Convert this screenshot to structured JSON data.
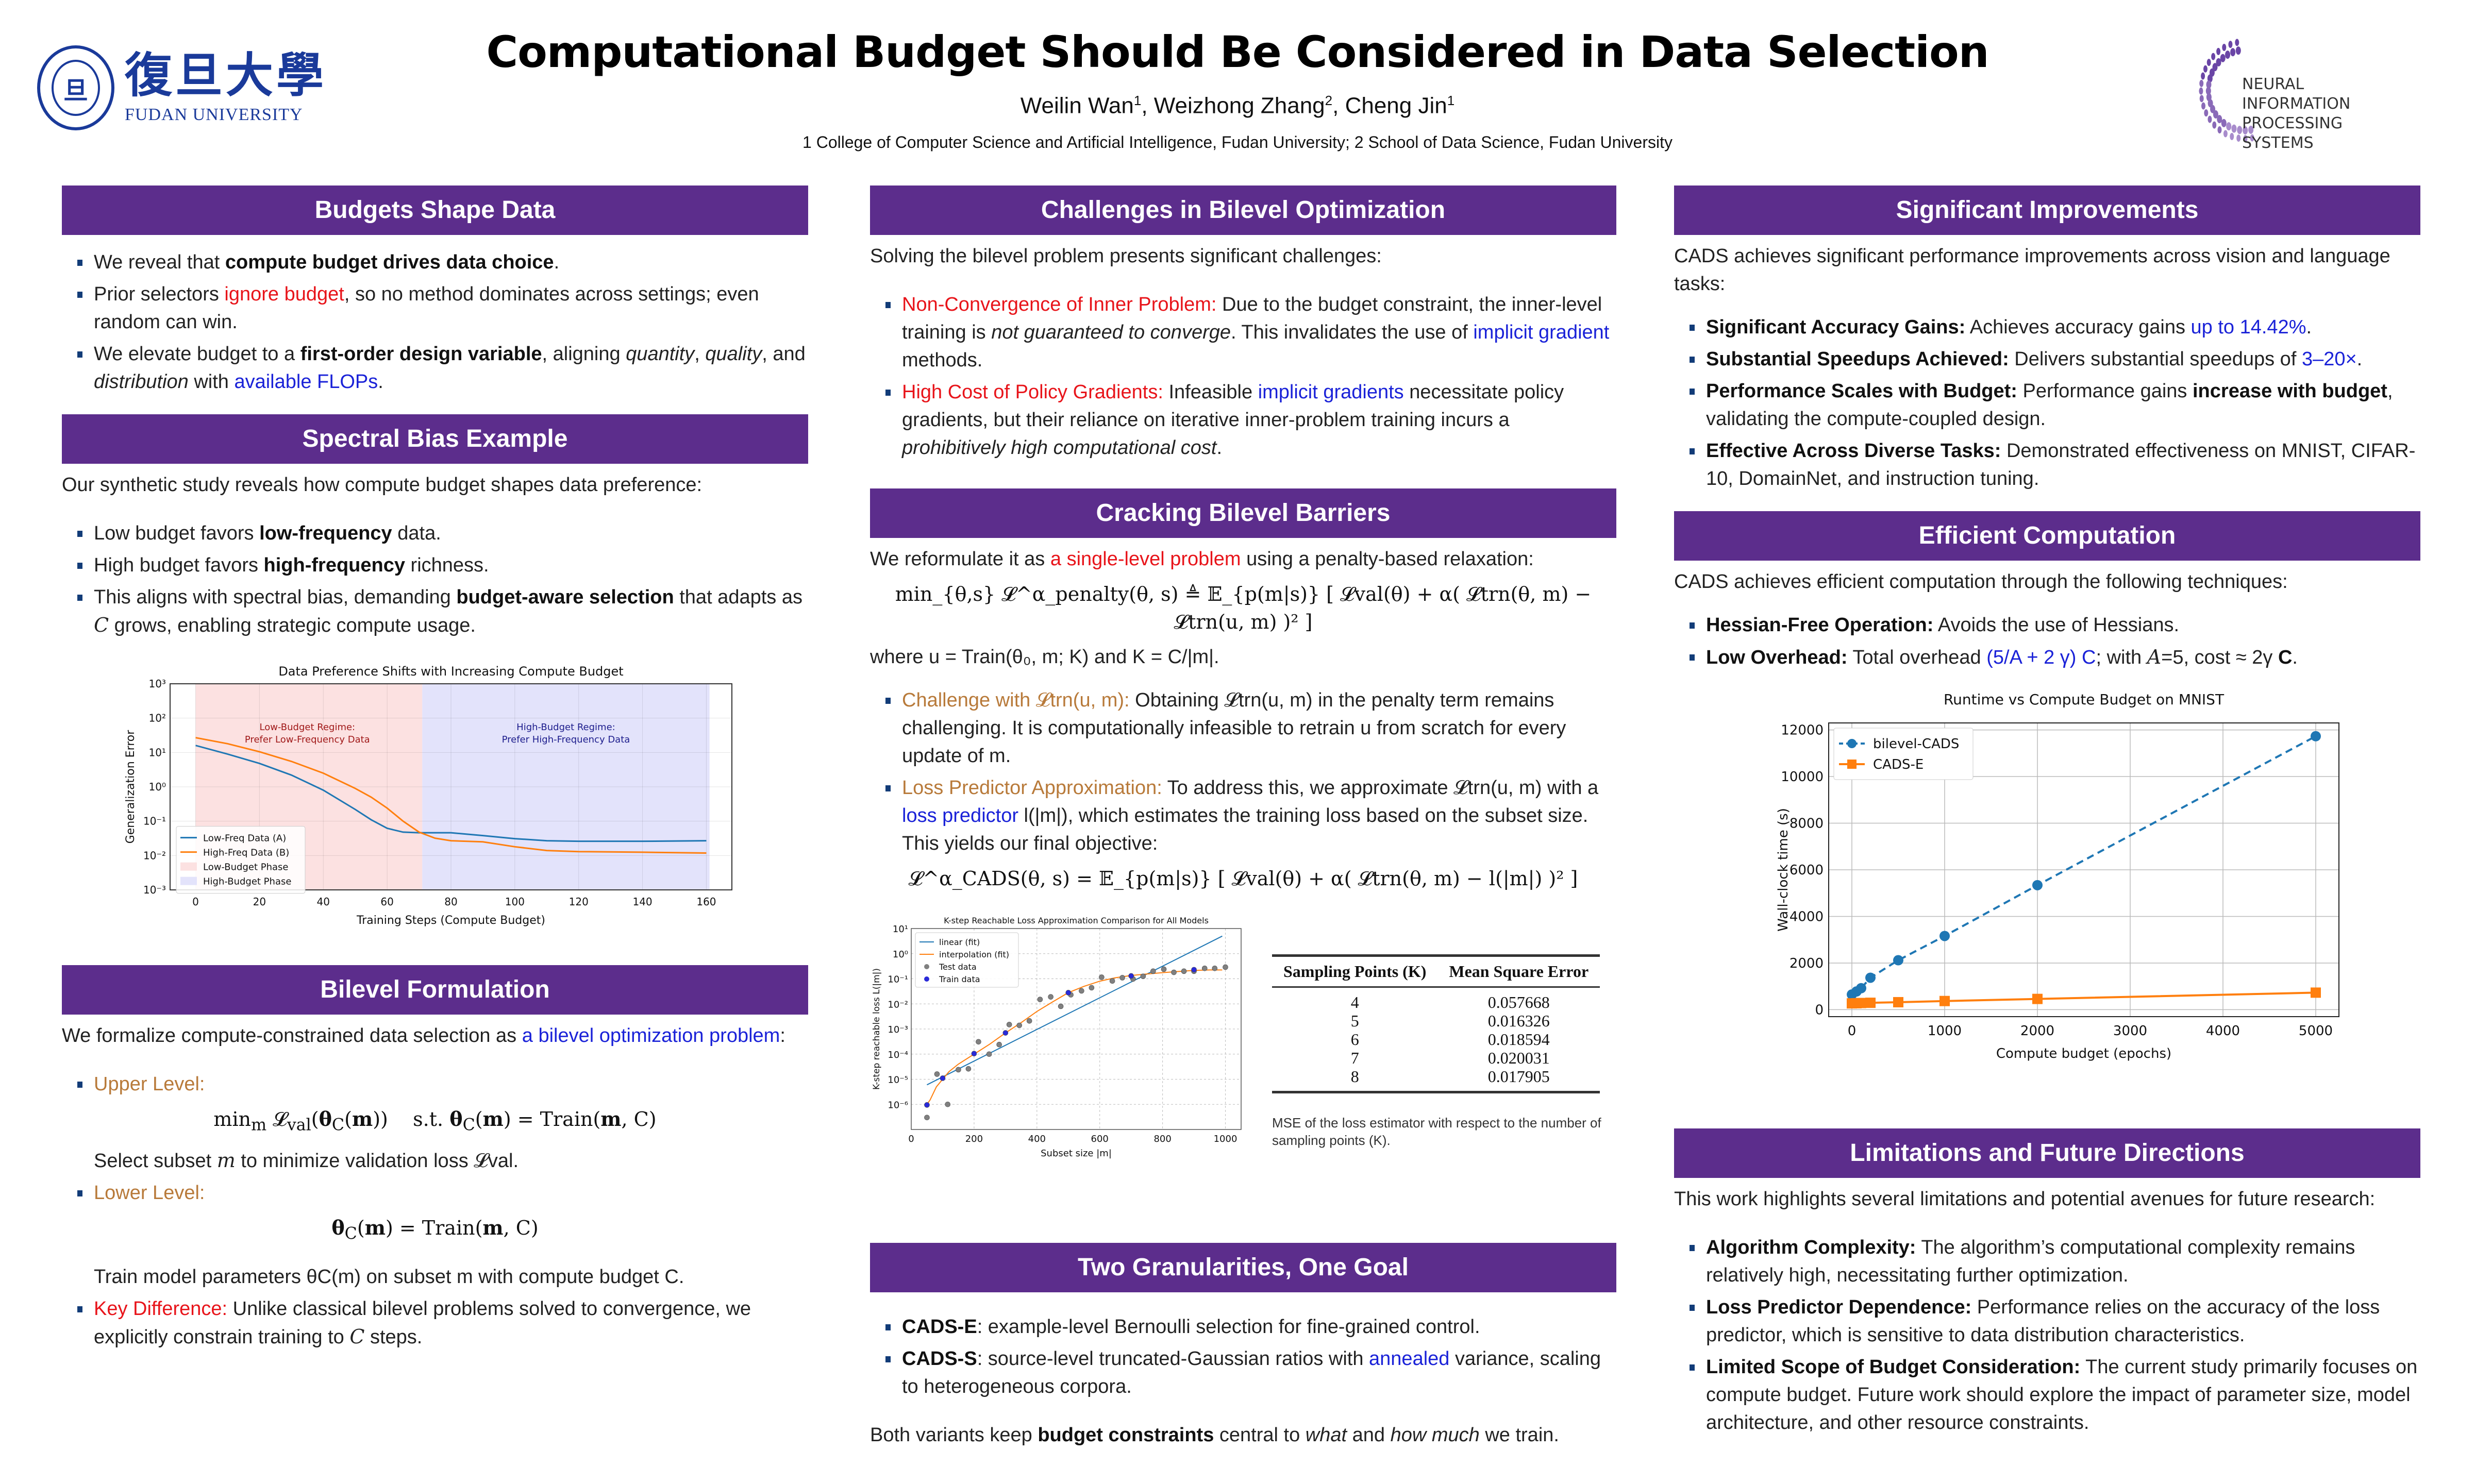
{
  "header": {
    "title": "Computational Budget Should Be Considered in Data Selection",
    "authors": [
      {
        "name": "Weilin Wan",
        "aff": "1"
      },
      {
        "name": "Weizhong Zhang",
        "aff": "2"
      },
      {
        "name": "Cheng Jin",
        "aff": "1"
      }
    ],
    "affiliations": "1 College of Computer Science and Artificial Intelligence, Fudan University; 2 School of Data Science, Fudan University",
    "logo_left": {
      "seal_glyph": "旦",
      "chinese": "復旦大學",
      "english": "FUDAN UNIVERSITY"
    },
    "logo_right": {
      "line1": "NEURAL INFORMATION",
      "line2": "PROCESSING SYSTEMS"
    }
  },
  "colors": {
    "section_header": "#5c2d8c",
    "accent_red": "#e8141a",
    "accent_blue": "#1a22d8",
    "accent_tan": "#b87a3a",
    "bullet": "#123c78"
  },
  "sections": {
    "budgets": {
      "title": "Budgets Shape Data",
      "b1": {
        "pre": "We reveal that ",
        "bold": "compute budget drives data choice",
        "post": "."
      },
      "b2": {
        "pre": "Prior selectors ",
        "red": "ignore budget",
        "post": ", so no method dominates across settings; even random can win."
      },
      "b3": {
        "pre": "We elevate budget to a ",
        "bold": "first-order design variable",
        "mid": ", aligning ",
        "i1": "quantity",
        "c1": ", ",
        "i2": "quality",
        "c2": ", and ",
        "i3": "distribution",
        "c3": " with ",
        "blue": "available FLOPs",
        "post": "."
      }
    },
    "spectral": {
      "title": "Spectral Bias Example",
      "intro": "Our synthetic study reveals how compute budget shapes data preference:",
      "b1": {
        "pre": "Low budget favors ",
        "bold": "low-frequency",
        "post": " data."
      },
      "b2": {
        "pre": "High budget favors ",
        "bold": "high-frequency",
        "post": " richness."
      },
      "b3": {
        "pre": "This aligns with spectral bias, demanding ",
        "bold": "budget-aware selection",
        "mid": " that adapts as ",
        "math": "C",
        "post": " grows, enabling strategic compute usage."
      }
    },
    "bilevel": {
      "title": "Bilevel Formulation",
      "intro_pre": "We formalize compute-constrained data selection as ",
      "intro_blue": "a bilevel optimization problem",
      "intro_post": ":",
      "upper_label": "Upper Level:",
      "upper_eq": "min_m 𝓛val(θC(m))   s.t. θC(m) = Train(m, C)",
      "upper_desc_pre": "Select subset ",
      "upper_desc_m": "m",
      "upper_desc_post": " to minimize validation loss 𝓛val.",
      "lower_label": "Lower Level:",
      "lower_eq": "θC(m) = Train(m, C)",
      "lower_desc": "Train model parameters θC(m) on subset m with compute budget C.",
      "key_label": "Key Difference:",
      "key_text_pre": " Unlike classical bilevel problems solved to convergence, we explicitly constrain training to ",
      "key_math": "C",
      "key_text_post": " steps."
    },
    "challenges": {
      "title": "Challenges in Bilevel Optimization",
      "intro": "Solving the bilevel problem presents significant challenges:",
      "b1": {
        "label": "Non-Convergence of Inner Problem:",
        "t1": " Due to the budget constraint, the inner-level training is ",
        "i": "not guaranteed to converge",
        "t2": ". This invalidates the use of ",
        "blue": "implicit gradient",
        "t3": " methods."
      },
      "b2": {
        "label": "High Cost of Policy Gradients:",
        "t1": " Infeasible ",
        "blue": "implicit gradients",
        "t2": " necessitate policy gradients, but their reliance on iterative inner-problem training incurs a ",
        "i": "prohibitively high computational cost",
        "t3": "."
      }
    },
    "cracking": {
      "title": "Cracking Bilevel Barriers",
      "intro_pre": "We reformulate it as ",
      "intro_red": "a single-level problem",
      "intro_post": " using a penalty-based relaxation:",
      "eq1": "min_{θ,s} 𝓛^α_penalty(θ, s) ≜ 𝔼_{p(m|s)} [ 𝓛val(θ) + α( 𝓛trn(θ, m) − 𝓛trn(u, m) )² ]",
      "where": "where u = Train(θ₀, m; K) and K = C/|m|.",
      "b1": {
        "label": "Challenge with 𝓛trn(u, m):",
        "text": "  Obtaining 𝓛trn(u, m) in the penalty term remains challenging. It is computationally infeasible to retrain u from scratch for every update of m."
      },
      "b2": {
        "label": "Loss Predictor Approximation:",
        "t1": " To address this, we approximate 𝓛trn(u, m) with a ",
        "blue": "loss predictor",
        "t2": " l(|m|), which estimates the training loss based on the subset size. This yields our final objective:"
      },
      "eq2": "𝓛^α_CADS(θ, s) = 𝔼_{p(m|s)} [ 𝓛val(θ) + α( 𝓛trn(θ, m) − l(|m|) )² ]",
      "table": {
        "headers": [
          "Sampling Points (K)",
          "Mean Square Error"
        ],
        "rows": [
          [
            "4",
            "0.057668"
          ],
          [
            "5",
            "0.016326"
          ],
          [
            "6",
            "0.018594"
          ],
          [
            "7",
            "0.020031"
          ],
          [
            "8",
            "0.017905"
          ]
        ],
        "caption": "MSE of the loss estimator with respect to the number of sampling points (K)."
      }
    },
    "granularities": {
      "title": "Two Granularities, One Goal",
      "b1": {
        "bold": "CADS-E",
        "text": ": example-level Bernoulli selection for fine-grained control."
      },
      "b2": {
        "bold": "CADS-S",
        "t1": ": source-level truncated-Gaussian ratios with ",
        "blue": "annealed",
        "t2": " variance, scaling to heterogeneous corpora."
      },
      "outro": {
        "pre": "Both variants keep ",
        "bold": "budget constraints",
        "mid": " central to ",
        "i1": "what",
        "mid2": " and ",
        "i2": "how much",
        "post": " we train."
      }
    },
    "improvements": {
      "title": "Significant Improvements",
      "intro": "CADS achieves significant performance improvements across vision and language tasks:",
      "b1": {
        "bold": "Significant Accuracy Gains:",
        "t1": " Achieves accuracy gains ",
        "blue": "up to 14.42%",
        "t2": "."
      },
      "b2": {
        "bold": "Substantial Speedups Achieved:",
        "t1": " Delivers substantial speedups of ",
        "blue": "3–20×",
        "t2": "."
      },
      "b3": {
        "bold": "Performance Scales with Budget:",
        "t1": " Performance gains ",
        "bold2": "increase with budget",
        "t2": ", validating the compute-coupled design."
      },
      "b4": {
        "bold": "Effective Across Diverse Tasks:",
        "t1": " Demonstrated effectiveness on MNIST, CIFAR-10, DomainNet, and instruction tuning."
      }
    },
    "efficient": {
      "title": "Efficient Computation",
      "intro": "CADS achieves efficient computation through the following techniques:",
      "b1": {
        "bold": "Hessian-Free Operation:",
        "t1": " Avoids the use of Hessians."
      },
      "b2": {
        "bold": "Low Overhead:",
        "t1": " Total overhead ",
        "blue": "(5/A + 2 γ) C",
        "t2": "; with ",
        "math": "A",
        "t3": "=5, cost ≈ 2γ ",
        "bold2": "C",
        "t4": "."
      }
    },
    "limitations": {
      "title": "Limitations and Future Directions",
      "intro": "This work highlights several limitations and potential avenues for future research:",
      "b1": {
        "bold": "Algorithm Complexity:",
        "t1": " The algorithm’s computational complexity remains relatively high, necessitating further optimization."
      },
      "b2": {
        "bold": "Loss Predictor Dependence:",
        "t1": " Performance relies on the accuracy of the loss predictor, which is sensitive to data distribution characteristics."
      },
      "b3": {
        "bold": "Limited Scope of Budget Consideration:",
        "t1": " The current study primarily focuses on compute budget. Future work should explore the impact of parameter size, model architecture, and other resource constraints."
      }
    }
  },
  "chart_data": [
    {
      "id": "spectral",
      "type": "line",
      "title": "Data Preference Shifts with Increasing Compute Budget",
      "xlabel": "Training Steps (Compute Budget)",
      "ylabel": "Generalization Error",
      "yscale": "log",
      "xlim": [
        -8,
        168
      ],
      "ylim": [
        0.001,
        1000
      ],
      "xticks": [
        0,
        20,
        40,
        60,
        80,
        100,
        120,
        140,
        160
      ],
      "yticks": [
        {
          "v": 0.001,
          "label": "10⁻³"
        },
        {
          "v": 0.01,
          "label": "10⁻²"
        },
        {
          "v": 0.1,
          "label": "10⁻¹"
        },
        {
          "v": 1,
          "label": "10⁰"
        },
        {
          "v": 10,
          "label": "10¹"
        },
        {
          "v": 100,
          "label": "10²"
        },
        {
          "v": 1000,
          "label": "10³"
        }
      ],
      "grid": true,
      "legend_position": "lower-left",
      "regions": [
        {
          "name": "Low-Budget Phase",
          "from": 0,
          "to": 71,
          "color": "#fce1e1"
        },
        {
          "name": "High-Budget Phase",
          "from": 71,
          "to": 161,
          "color": "#e3e3fb"
        }
      ],
      "annotations": [
        {
          "lines": [
            "Low-Budget Regime:",
            "Prefer Low-Frequency Data"
          ],
          "x": 35,
          "y": 45,
          "color": "#a01818"
        },
        {
          "lines": [
            "High-Budget Regime:",
            "Prefer High-Frequency Data"
          ],
          "x": 116,
          "y": 45,
          "color": "#1c1c8c"
        }
      ],
      "x": [
        0,
        10,
        20,
        30,
        40,
        50,
        55,
        60,
        65,
        70,
        75,
        80,
        90,
        100,
        110,
        120,
        140,
        160
      ],
      "series": [
        {
          "name": "Low-Freq Data (A)",
          "color": "#1f77b4",
          "values": [
            16,
            9,
            4.8,
            2.2,
            0.8,
            0.22,
            0.11,
            0.062,
            0.048,
            0.046,
            0.046,
            0.046,
            0.038,
            0.031,
            0.027,
            0.026,
            0.026,
            0.027
          ]
        },
        {
          "name": "High-Freq Data (B)",
          "color": "#ff7f0e",
          "values": [
            27,
            18,
            10.5,
            5.5,
            2.5,
            0.9,
            0.5,
            0.24,
            0.1,
            0.048,
            0.032,
            0.027,
            0.025,
            0.018,
            0.014,
            0.013,
            0.0125,
            0.0118
          ]
        }
      ]
    },
    {
      "id": "kstep",
      "type": "scatter",
      "title": "K-step Reachable Loss Approximation Comparison for All Models",
      "xlabel": "Subset size |m|",
      "ylabel": "K-step reachable loss L(|m|)",
      "yscale": "log",
      "xlim": [
        0,
        1050
      ],
      "ylim": [
        1e-07,
        10
      ],
      "xticks": [
        0,
        200,
        400,
        600,
        800,
        1000
      ],
      "yticks": [
        {
          "v": 1e-06,
          "label": "10⁻⁶"
        },
        {
          "v": 1e-05,
          "label": "10⁻⁵"
        },
        {
          "v": 0.0001,
          "label": "10⁻⁴"
        },
        {
          "v": 0.001,
          "label": "10⁻³"
        },
        {
          "v": 0.01,
          "label": "10⁻²"
        },
        {
          "v": 0.1,
          "label": "10⁻¹"
        },
        {
          "v": 1,
          "label": "10⁰"
        },
        {
          "v": 10,
          "label": "10¹"
        }
      ],
      "grid": true,
      "legend_position": "upper-left",
      "lines": [
        {
          "name": "linear (fit)",
          "color": "#1f77b4",
          "x": [
            50,
            990
          ],
          "y": [
            6e-06,
            5
          ]
        },
        {
          "name": "interpolation (fit)",
          "color": "#ff7f0e",
          "x": [
            50,
            60,
            80,
            100,
            120,
            150,
            200,
            250,
            300,
            350,
            400,
            450,
            500,
            550,
            600,
            650,
            700,
            750,
            800,
            850,
            900,
            950,
            990
          ],
          "y": [
            1e-06,
            1.5e-06,
            5e-06,
            1e-05,
            2e-05,
            4e-05,
            0.0001,
            0.00025,
            0.0007,
            0.0018,
            0.005,
            0.012,
            0.028,
            0.05,
            0.08,
            0.11,
            0.135,
            0.155,
            0.175,
            0.195,
            0.215,
            0.225,
            0.225
          ]
        }
      ],
      "points": [
        {
          "name": "Test data",
          "color": "#808080",
          "x": [
            50,
            82,
            116,
            150,
            182,
            214,
            248,
            280,
            312,
            344,
            376,
            410,
            444,
            476,
            508,
            542,
            574,
            606,
            640,
            672,
            706,
            738,
            770,
            804,
            836,
            868,
            900,
            934,
            966,
            1000
          ],
          "y": [
            3e-07,
            1.6e-05,
            1e-06,
            2.4e-05,
            2.6e-05,
            0.00031,
            0.0001,
            0.00024,
            0.0015,
            0.0014,
            0.0021,
            0.015,
            0.019,
            0.008,
            0.023,
            0.033,
            0.044,
            0.115,
            0.082,
            0.11,
            0.098,
            0.125,
            0.2,
            0.24,
            0.18,
            0.2,
            0.2,
            0.26,
            0.26,
            0.29
          ]
        },
        {
          "name": "Train data",
          "color": "#2a2ad8",
          "x": [
            50,
            100,
            200,
            300,
            500,
            700,
            900
          ],
          "y": [
            9.5e-07,
            1.1e-05,
            0.000105,
            0.0007,
            0.028,
            0.13,
            0.23
          ]
        }
      ]
    },
    {
      "id": "runtime",
      "type": "line",
      "title": "Runtime vs Compute Budget on MNIST",
      "xlabel": "Compute budget (epochs)",
      "ylabel": "Wall-clock time (s)",
      "xlim": [
        -250,
        5250
      ],
      "ylim": [
        -300,
        12300
      ],
      "xticks": [
        0,
        1000,
        2000,
        3000,
        4000,
        5000
      ],
      "yticks": [
        0,
        2000,
        4000,
        6000,
        8000,
        10000,
        12000
      ],
      "grid": true,
      "legend_position": "upper-left",
      "x": [
        0,
        50,
        100,
        200,
        500,
        1000,
        2000,
        5000
      ],
      "series": [
        {
          "name": "bilevel-CADS",
          "color": "#1f77b4",
          "style": "dashed",
          "marker": "circle",
          "values": [
            650,
            780,
            920,
            1370,
            2120,
            3160,
            5340,
            11730
          ]
        },
        {
          "name": "CADS-E",
          "color": "#ff7f0e",
          "style": "solid",
          "marker": "square",
          "values": [
            270,
            275,
            285,
            295,
            320,
            370,
            460,
            730
          ]
        }
      ]
    }
  ]
}
